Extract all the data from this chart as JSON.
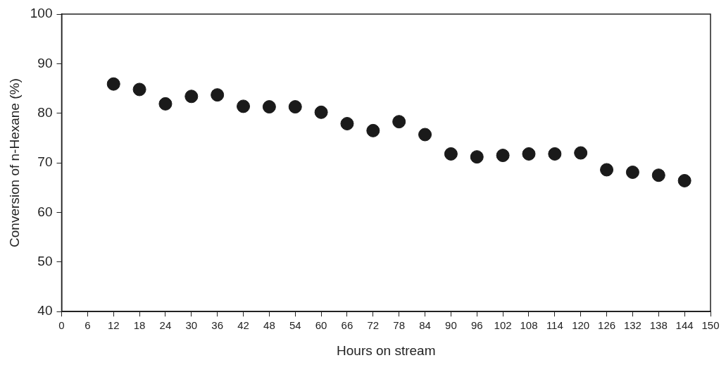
{
  "chart_data": {
    "type": "scatter",
    "xlabel": "Hours on stream",
    "ylabel": "Conversion of n-Hexane (%)",
    "x": [
      12,
      18,
      24,
      30,
      36,
      42,
      48,
      54,
      60,
      66,
      72,
      78,
      84,
      90,
      96,
      102,
      108,
      114,
      120,
      126,
      132,
      138,
      144
    ],
    "series": [
      {
        "color": "#1a1a1a",
        "values": [
          85.9,
          84.8,
          81.9,
          83.4,
          83.7,
          81.4,
          81.3,
          81.3,
          80.2,
          77.9,
          76.5,
          78.3,
          75.7,
          71.8,
          71.2,
          71.5,
          71.8,
          71.8,
          72.0,
          68.6,
          68.1,
          67.5,
          66.4
        ]
      }
    ],
    "xlim": [
      0,
      150
    ],
    "xticks": [
      0,
      6,
      12,
      18,
      24,
      30,
      36,
      42,
      48,
      54,
      60,
      66,
      72,
      78,
      84,
      90,
      96,
      102,
      108,
      114,
      120,
      126,
      132,
      138,
      144,
      150
    ],
    "ylim": [
      40,
      100
    ],
    "yticks": [
      40,
      50,
      60,
      70,
      80,
      90,
      100
    ],
    "marker": "circle",
    "grid": false,
    "legend": false
  }
}
